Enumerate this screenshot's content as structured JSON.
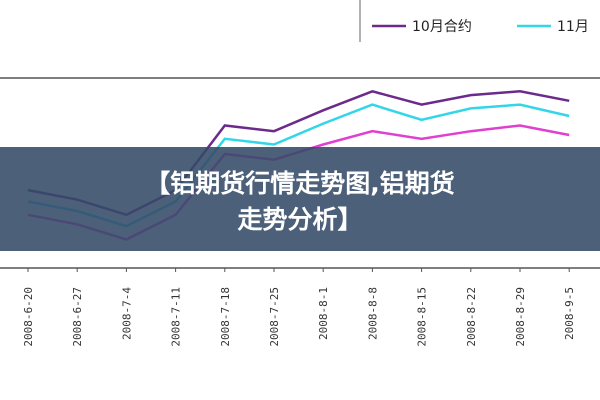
{
  "chart_data": {
    "type": "line",
    "title": "【铝期货行情走势图,铝期货走势分析】",
    "categories": [
      "2008-6-20",
      "2008-6-27",
      "2008-7-4",
      "2008-7-11",
      "2008-7-18",
      "2008-7-25",
      "2008-8-1",
      "2008-8-8",
      "2008-8-15",
      "2008-8-22",
      "2008-8-29",
      "2008-9-5"
    ],
    "ylim": [
      0,
      100
    ],
    "series": [
      {
        "name": "10月合约",
        "color": "#6b2a8c",
        "values": [
          41,
          36,
          28,
          41,
          75,
          72,
          83,
          93,
          86,
          91,
          93,
          88
        ]
      },
      {
        "name": "11月",
        "color": "#33d6e8",
        "values": [
          35,
          30,
          22,
          35,
          68,
          65,
          76,
          86,
          78,
          84,
          86,
          80
        ]
      },
      {
        "color": "#e040d0",
        "values": [
          28,
          23,
          15,
          28,
          60,
          57,
          65,
          72,
          68,
          72,
          75,
          70
        ]
      }
    ]
  }
}
